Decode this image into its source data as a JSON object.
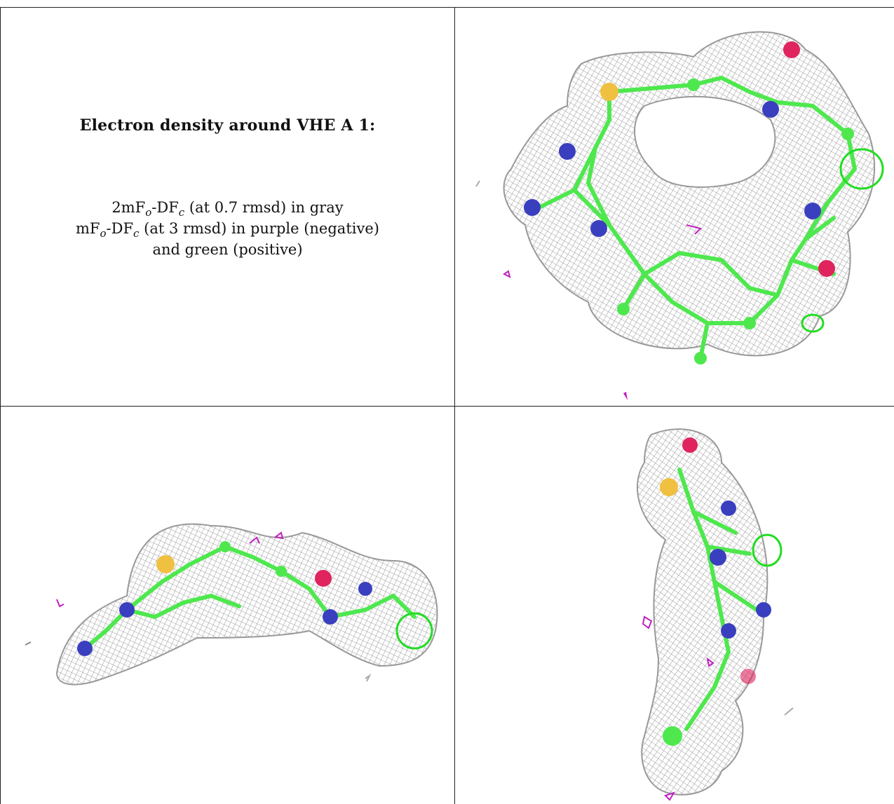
{
  "caption": {
    "title": "Electron density around VHE A 1:",
    "line1": {
      "a": "2mF",
      "b": "o",
      "c": "-DF",
      "d": "c",
      "e": " (at 0.7 rmsd) in gray"
    },
    "line2": {
      "a": "mF",
      "b": "o",
      "c": "-DF",
      "d": "c",
      "e": " (at 3 rmsd) in purple (negative)"
    },
    "line3": "and green (positive)"
  },
  "colors": {
    "mesh": "#a8a8a8",
    "carbon": "#4ee84e",
    "nitrogen": "#3a3fbf",
    "oxygen": "#e0245e",
    "sulfur": "#f0c040",
    "negative": "#c020c0",
    "positive": "#22dd22"
  },
  "views": [
    {
      "name": "top-view",
      "image_desc": "electron density mesh around ligand, top view"
    },
    {
      "name": "side-view",
      "image_desc": "electron density mesh around ligand, side view"
    },
    {
      "name": "end-view",
      "image_desc": "electron density mesh around ligand, end view"
    }
  ]
}
